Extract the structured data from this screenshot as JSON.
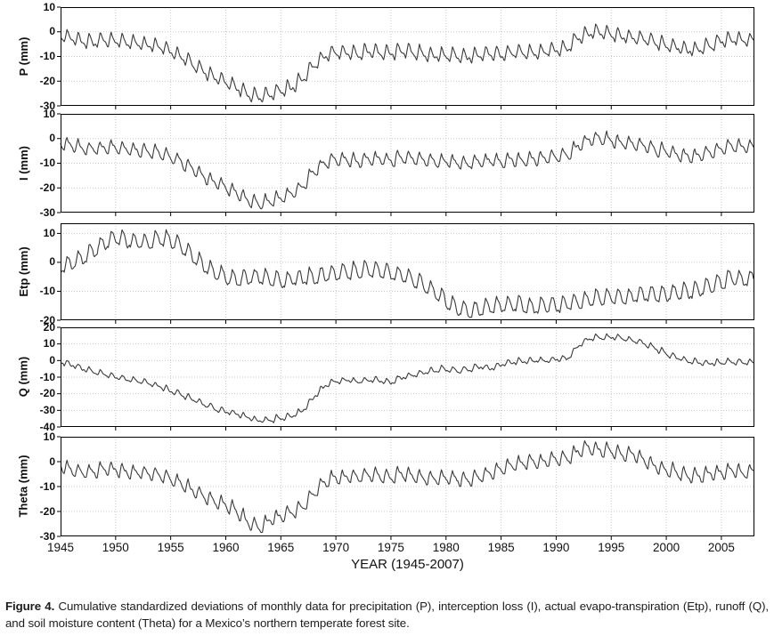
{
  "figure": {
    "caption_label": "Figure 4.",
    "caption_text": "Cumulative standardized deviations of monthly data for precipitation (P), interception loss (I), actual evapo-transpiration (Etp), runoff (Q), and soil moisture content (Theta) for a Mexico’s northern temperate forest site."
  },
  "chart_data": {
    "type": "line",
    "layout": "five vertically stacked panels sharing the x axis",
    "x_label": "YEAR (1945-2007)",
    "x_range": [
      1945,
      2008
    ],
    "x_ticks": [
      1945,
      1950,
      1955,
      1960,
      1965,
      1970,
      1975,
      1980,
      1985,
      1990,
      1995,
      2000,
      2005
    ],
    "x_resolution": "monthly",
    "grid": true,
    "line_color": "#3a3a3a",
    "grid_color": "#c9c9c9",
    "frame_color": "#000000",
    "panels": [
      {
        "name": "precipitation",
        "ylabel": "P (mm)",
        "ylim": [
          -30,
          10
        ],
        "yticks": [
          10,
          0,
          -10,
          -20,
          -30
        ],
        "gridlines": [
          0,
          -10,
          -20
        ],
        "seasonal_amplitude": 2.6,
        "annual_trend_start_year": 1945,
        "annual_trend": [
          -1,
          -2.5,
          -3.5,
          -4,
          -3,
          -3.5,
          -4,
          -4.5,
          -5,
          -5.5,
          -7.5,
          -10,
          -12.5,
          -15.5,
          -18,
          -20,
          -22,
          -25,
          -26,
          -25,
          -23.5,
          -22,
          -19,
          -13,
          -9.5,
          -8,
          -8.5,
          -9,
          -7.5,
          -8,
          -8.5,
          -7,
          -8,
          -8.5,
          -9.5,
          -9,
          -9.5,
          -10,
          -9,
          -8.5,
          -9,
          -8,
          -8.5,
          -8,
          -7.5,
          -7,
          -6.5,
          -2,
          0,
          0.5,
          -0.5,
          -1.5,
          -2,
          -2.5,
          -4,
          -5,
          -6,
          -7,
          -6.5,
          -5,
          -3.5,
          -2.5,
          -3
        ]
      },
      {
        "name": "interception-loss",
        "ylabel": "I (mm)",
        "ylim": [
          -30,
          10
        ],
        "yticks": [
          10,
          0,
          -10,
          -20,
          -30
        ],
        "gridlines": [
          0,
          -10,
          -20
        ],
        "seasonal_amplitude": 2.6,
        "annual_trend_start_year": 1945,
        "annual_trend": [
          -1,
          -2.5,
          -3.5,
          -4,
          -3.5,
          -3.5,
          -4,
          -4.5,
          -5,
          -5.5,
          -7,
          -9.5,
          -12,
          -15,
          -17.5,
          -19.5,
          -21.5,
          -24.5,
          -26,
          -25,
          -23.5,
          -22,
          -19,
          -13,
          -9.5,
          -8,
          -8.5,
          -9,
          -7.5,
          -8,
          -8.5,
          -7,
          -8,
          -8.5,
          -9.5,
          -9,
          -9.5,
          -10,
          -9,
          -8.5,
          -9,
          -8,
          -8.5,
          -8,
          -7.5,
          -7,
          -6.5,
          -2.5,
          0,
          0.5,
          -0.5,
          -1.5,
          -2,
          -2.5,
          -4,
          -5,
          -6,
          -7,
          -6.5,
          -5,
          -3.5,
          -2.5,
          -3
        ]
      },
      {
        "name": "actual-evapo-transpiration",
        "ylabel": "Etp (mm)",
        "ylim": [
          -20,
          13.5
        ],
        "yticks": [
          10,
          0,
          -10,
          -20
        ],
        "gridlines": [
          10,
          0,
          -10
        ],
        "seasonal_amplitude": 3.2,
        "annual_trend_start_year": 1945,
        "annual_trend": [
          -1,
          0,
          2,
          4.5,
          7,
          9,
          8,
          7.5,
          7,
          8.5,
          8,
          5.5,
          2.5,
          -0.5,
          -3,
          -4.5,
          -5.5,
          -5,
          -4.5,
          -5.5,
          -6,
          -5.5,
          -5,
          -4.5,
          -4,
          -3.5,
          -3,
          -2.5,
          -2,
          -2.5,
          -3.5,
          -4,
          -5.5,
          -7.5,
          -10,
          -13,
          -15.5,
          -16.5,
          -16,
          -15,
          -14.5,
          -14,
          -14.5,
          -15,
          -14.5,
          -14.5,
          -14,
          -13.5,
          -12.5,
          -12,
          -11.5,
          -12,
          -11.5,
          -10.5,
          -11,
          -10.5,
          -10,
          -9.5,
          -9,
          -8,
          -6.5,
          -5,
          -5.5
        ]
      },
      {
        "name": "runoff",
        "ylabel": "Q (mm)",
        "ylim": [
          -40,
          20
        ],
        "yticks": [
          20,
          10,
          0,
          -10,
          -20,
          -30,
          -40
        ],
        "gridlines": [
          10,
          0,
          -10,
          -20,
          -30
        ],
        "seasonal_amplitude": 1.6,
        "annual_trend_start_year": 1945,
        "annual_trend": [
          -0.5,
          -2.5,
          -4.5,
          -6.5,
          -8,
          -9.5,
          -11,
          -12,
          -13.5,
          -15.5,
          -18,
          -20.5,
          -23,
          -26,
          -28.5,
          -30.5,
          -32,
          -34,
          -36,
          -35.5,
          -34.5,
          -33,
          -30,
          -22,
          -15,
          -12,
          -11.5,
          -12.5,
          -11,
          -12,
          -13,
          -10,
          -8.5,
          -7,
          -5.5,
          -5,
          -6,
          -5,
          -3.5,
          -4.5,
          -2.5,
          -1,
          0,
          0.5,
          0,
          1,
          1.5,
          9,
          13.5,
          14,
          14.5,
          13.5,
          12.5,
          10.5,
          7.5,
          4.5,
          2,
          0,
          -1,
          -1.5,
          -1,
          -0.5,
          -1
        ]
      },
      {
        "name": "soil-moisture-content",
        "ylabel": "Theta (mm)",
        "ylim": [
          -30,
          10
        ],
        "yticks": [
          10,
          0,
          -10,
          -20,
          -30
        ],
        "gridlines": [
          0,
          -10,
          -20
        ],
        "seasonal_amplitude": 2.7,
        "annual_trend_start_year": 1945,
        "annual_trend": [
          -1,
          -3,
          -4,
          -3.5,
          -2.5,
          -3,
          -3.5,
          -4,
          -4.5,
          -5,
          -6.5,
          -8.5,
          -11,
          -13.5,
          -15.5,
          -17,
          -19.5,
          -24,
          -26,
          -23,
          -21.5,
          -20,
          -18,
          -12,
          -8,
          -6,
          -5.5,
          -6,
          -5,
          -5.5,
          -6,
          -4.5,
          -5.5,
          -6,
          -6.5,
          -6,
          -6.5,
          -7,
          -6,
          -4.5,
          -2.5,
          -1,
          0,
          0.5,
          0.5,
          1.5,
          1.5,
          4.5,
          6,
          5,
          4.5,
          3,
          3.5,
          1,
          -1.5,
          -3,
          -4,
          -5.5,
          -5.5,
          -4.5,
          -4,
          -3,
          -4
        ]
      }
    ]
  }
}
